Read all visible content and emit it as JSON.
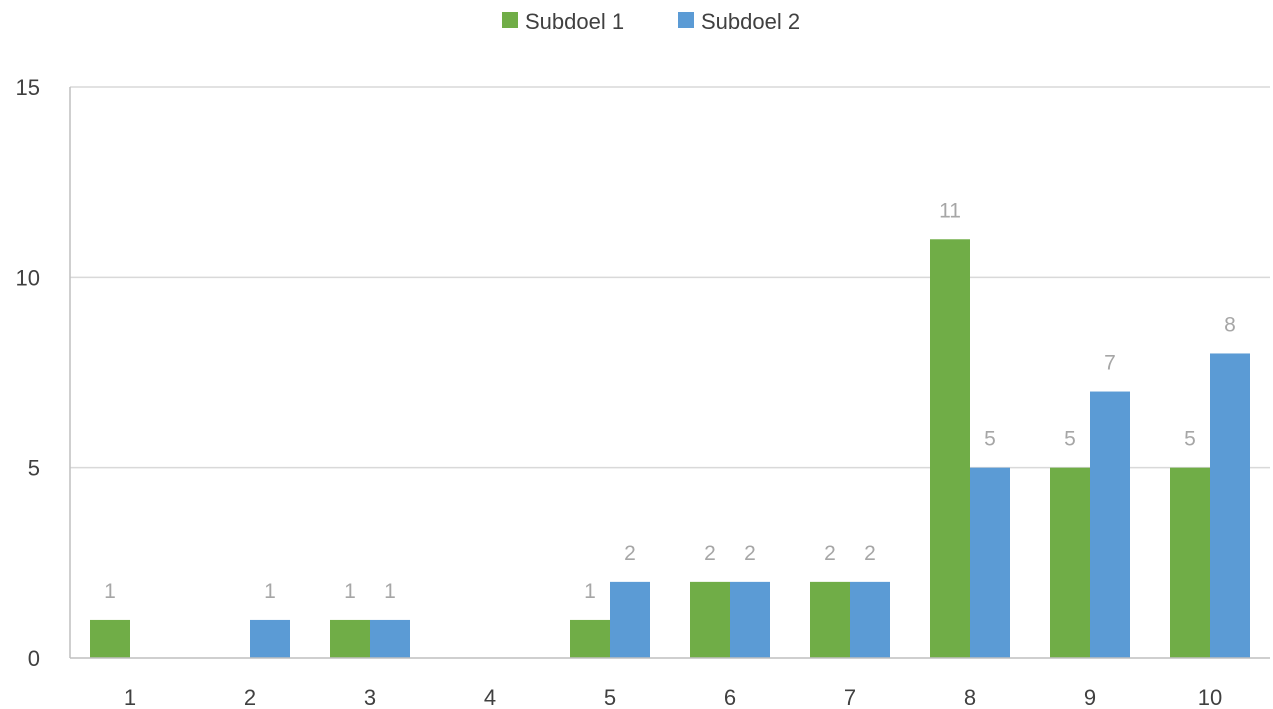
{
  "chart_data": {
    "type": "bar",
    "title": "",
    "xlabel": "",
    "ylabel": "",
    "categories": [
      "1",
      "2",
      "3",
      "4",
      "5",
      "6",
      "7",
      "8",
      "9",
      "10"
    ],
    "series": [
      {
        "name": "Subdoel 1",
        "color": "#70ad47",
        "values": [
          1,
          0,
          1,
          0,
          1,
          2,
          2,
          11,
          5,
          5
        ]
      },
      {
        "name": "Subdoel 2",
        "color": "#5b9bd5",
        "values": [
          0,
          1,
          1,
          0,
          2,
          2,
          2,
          5,
          7,
          8
        ]
      }
    ],
    "ylim": [
      0,
      15
    ],
    "yticks": [
      "0",
      "5",
      "10",
      "15"
    ],
    "grid": true,
    "legend_position": "top-center",
    "data_labels": [
      [
        "1",
        "",
        "1",
        "",
        "1",
        "2",
        "2",
        "11",
        "5",
        "5"
      ],
      [
        "",
        "1",
        "1",
        "",
        "2",
        "2",
        "2",
        "5",
        "7",
        "8"
      ]
    ]
  }
}
